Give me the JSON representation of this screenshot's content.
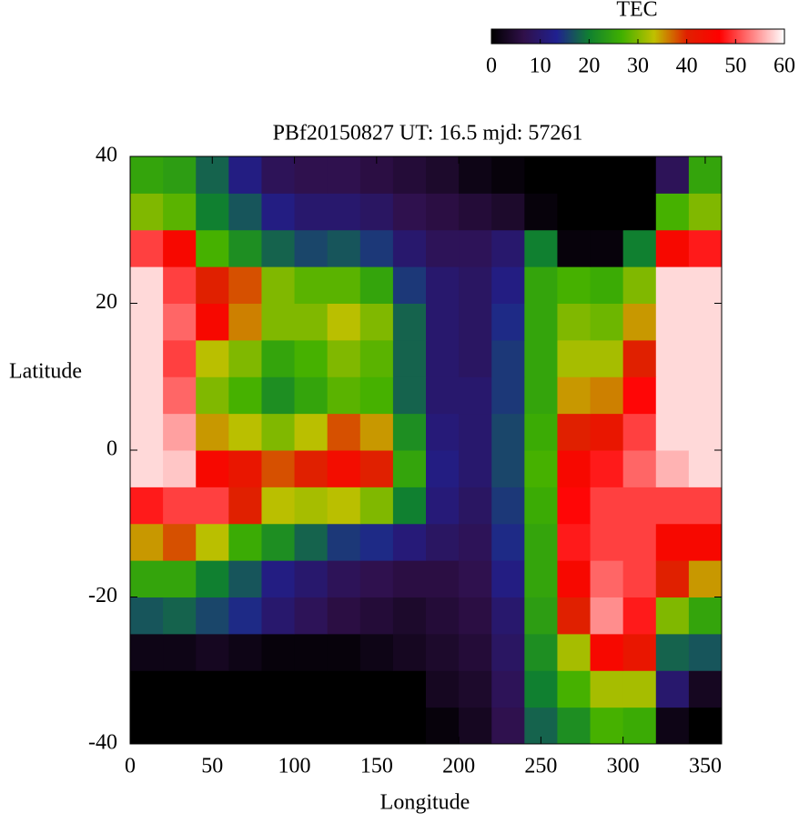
{
  "chart_data": {
    "type": "heatmap",
    "title": "PBf20150827  UT: 16.5  mjd: 57261",
    "xlabel": "Longitude",
    "ylabel": "Latitude",
    "colorbar_label": "TEC",
    "xbins": [
      0,
      20,
      40,
      60,
      80,
      100,
      120,
      140,
      160,
      180,
      200,
      220,
      240,
      260,
      280,
      300,
      320,
      340,
      360
    ],
    "ybins": [
      -40,
      -35,
      -30,
      -25,
      -20,
      -15,
      -10,
      -5,
      0,
      5,
      10,
      15,
      20,
      25,
      30,
      35,
      40
    ],
    "values": [
      [
        0,
        0,
        0,
        0,
        0,
        0,
        0,
        0,
        0,
        1,
        3,
        7,
        18,
        22,
        27,
        26,
        2,
        0
      ],
      [
        0,
        0,
        0,
        0,
        0,
        0,
        0,
        0,
        0,
        3,
        4,
        8,
        20,
        27,
        32,
        32,
        10,
        3
      ],
      [
        2,
        2,
        3,
        2,
        1,
        1,
        1,
        2,
        3,
        4,
        5,
        9,
        22,
        32,
        45,
        42,
        18,
        17
      ],
      [
        17,
        18,
        16,
        14,
        10,
        8,
        6,
        5,
        4,
        5,
        6,
        10,
        24,
        40,
        54,
        48,
        30,
        25
      ],
      [
        25,
        25,
        20,
        17,
        12,
        10,
        8,
        7,
        6,
        6,
        7,
        12,
        25,
        45,
        52,
        50,
        40,
        35
      ],
      [
        35,
        38,
        33,
        26,
        22,
        18,
        15,
        14,
        11,
        9,
        8,
        14,
        25,
        48,
        50,
        50,
        45,
        45
      ],
      [
        48,
        50,
        50,
        40,
        33,
        32,
        33,
        30,
        20,
        11,
        9,
        15,
        26,
        47,
        50,
        50,
        50,
        50
      ],
      [
        58,
        57,
        45,
        42,
        38,
        40,
        44,
        40,
        25,
        12,
        10,
        16,
        27,
        45,
        48,
        52,
        56,
        58
      ],
      [
        58,
        55,
        35,
        33,
        30,
        33,
        38,
        35,
        22,
        11,
        10,
        16,
        26,
        40,
        42,
        50,
        58,
        58
      ],
      [
        58,
        52,
        30,
        27,
        22,
        25,
        28,
        27,
        18,
        10,
        10,
        15,
        25,
        35,
        36,
        47,
        58,
        58
      ],
      [
        58,
        50,
        33,
        30,
        25,
        27,
        30,
        28,
        18,
        10,
        9,
        15,
        25,
        32,
        32,
        40,
        58,
        58
      ],
      [
        58,
        52,
        45,
        36,
        30,
        30,
        33,
        30,
        18,
        10,
        9,
        14,
        25,
        30,
        29,
        35,
        58,
        58
      ],
      [
        58,
        50,
        40,
        38,
        30,
        28,
        28,
        25,
        15,
        10,
        9,
        12,
        25,
        27,
        26,
        30,
        58,
        58
      ],
      [
        50,
        45,
        27,
        22,
        18,
        16,
        17,
        15,
        10,
        8,
        8,
        10,
        20,
        1,
        1,
        20,
        45,
        48
      ],
      [
        30,
        28,
        20,
        17,
        12,
        10,
        10,
        9,
        7,
        6,
        5,
        4,
        1,
        0,
        0,
        0,
        27,
        30
      ],
      [
        25,
        24,
        18,
        12,
        8,
        7,
        7,
        6,
        5,
        4,
        2,
        1,
        0,
        0,
        0,
        0,
        8,
        25
      ]
    ],
    "xlim": [
      0,
      360
    ],
    "ylim": [
      -40,
      40
    ],
    "xticks": [
      0,
      50,
      100,
      150,
      200,
      250,
      300,
      350
    ],
    "yticks": [
      -40,
      -20,
      0,
      20,
      40
    ],
    "zlim": [
      0,
      60
    ],
    "zticks": [
      0,
      10,
      20,
      30,
      40,
      50,
      60
    ],
    "colormap": [
      "#000000",
      "#30104a",
      "#202090",
      "#108030",
      "#40b000",
      "#c0c000",
      "#e02000",
      "#ff0000",
      "#ff8080",
      "#ffffff"
    ]
  }
}
